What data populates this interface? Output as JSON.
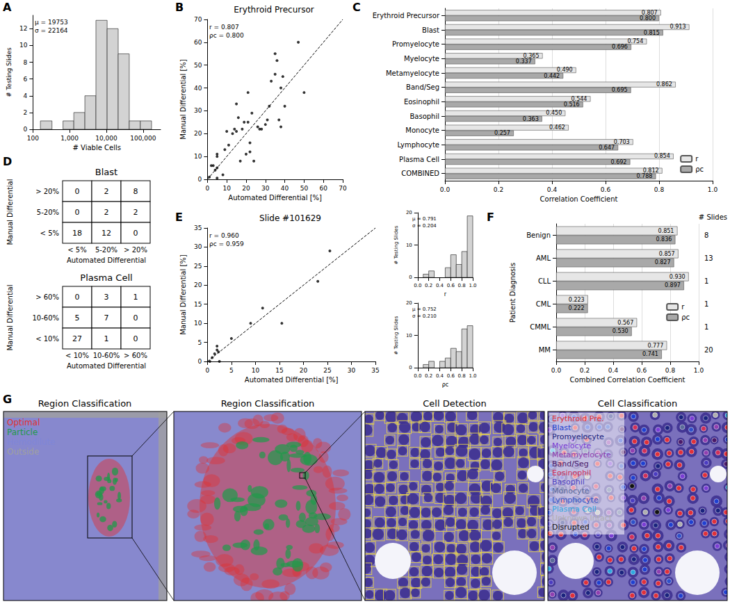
{
  "panel_labels": [
    "A",
    "B",
    "C",
    "D",
    "E",
    "F",
    "G"
  ],
  "chart_data": [
    {
      "type": "histogram",
      "xlabel": "# Viable Cells",
      "ylabel": "# Testing Slides",
      "annotations": [
        "μ = 19753",
        "σ = 22164"
      ],
      "bins": [
        160,
        330,
        660,
        1300,
        2600,
        5200,
        10500,
        21000,
        42000,
        84000,
        170000
      ],
      "counts": [
        1,
        0,
        1,
        2,
        4,
        13,
        12,
        9,
        1,
        1
      ],
      "color": "#d3d3d3",
      "log": "x",
      "xlim": [
        100,
        300000
      ],
      "xticks": [
        100,
        {
          "value": 1000,
          "label": "1,000"
        },
        {
          "value": 10000,
          "label": "10,000"
        },
        {
          "value": 100000,
          "label": "100,000"
        }
      ],
      "ylim": [
        0,
        13.6
      ],
      "yticks": [
        0,
        2,
        4,
        6,
        8,
        10,
        12
      ]
    },
    {
      "type": "scatter",
      "title": "Erythroid Precursor",
      "xlabel": "Automated Differential [%]",
      "ylabel": "Manual Differential [%]",
      "annotations": [
        "r = 0.807",
        "ρc = 0.800"
      ],
      "x": [
        1,
        2,
        3,
        4,
        5,
        5,
        5,
        5,
        8,
        9,
        10,
        11,
        13,
        14,
        15,
        15,
        16,
        17,
        18,
        19,
        20,
        21,
        21,
        22,
        22,
        23,
        24,
        26,
        27,
        28,
        30,
        31,
        32,
        33,
        35,
        35,
        36,
        37,
        38,
        38,
        39,
        40,
        47,
        50
      ],
      "y": [
        1,
        6,
        6,
        4,
        0.5,
        5,
        10,
        11,
        2,
        13,
        21,
        15,
        20,
        22,
        21,
        33,
        27,
        8,
        22,
        25,
        11,
        25,
        38,
        16,
        12,
        29,
        8,
        23,
        22,
        22,
        24,
        26,
        32,
        43,
        55,
        46,
        52,
        26,
        23,
        40,
        45,
        32,
        60,
        38
      ],
      "color": "#000000",
      "line_style": "dashed",
      "xlim": [
        0,
        70
      ],
      "ylim": [
        0,
        70
      ],
      "xticks": [
        0,
        10,
        20,
        30,
        40,
        50,
        60,
        70
      ],
      "yticks": [
        0,
        10,
        20,
        30,
        40,
        50,
        60,
        70
      ]
    },
    {
      "type": "bar",
      "orientation": "horizontal",
      "xlabel": "Correlation Coefficient",
      "categories": [
        "Erythroid Precursor",
        "Blast",
        "Promyelocyte",
        "Myelocyte",
        "Metamyelocyte",
        "Band/Seg",
        "Eosinophil",
        "Basophil",
        "Monocyte",
        "Lymphocyte",
        "Plasma Cell",
        "COMBINED"
      ],
      "series": [
        {
          "name": "r",
          "color": "#e6e6e6",
          "values": [
            0.807,
            0.913,
            0.754,
            0.365,
            0.49,
            0.862,
            0.544,
            0.45,
            0.462,
            0.703,
            0.854,
            0.812
          ],
          "value_labels": [
            "0.807",
            "0.913",
            "0.754",
            "0.365",
            "0.490",
            "0.862",
            "0.544",
            "0.450",
            "0.462",
            "0.703",
            "0.854",
            "0.812"
          ]
        },
        {
          "name": "ρc",
          "color": "#a9a9a9",
          "values": [
            0.8,
            0.815,
            0.696,
            0.337,
            0.442,
            0.695,
            0.516,
            0.363,
            0.257,
            0.647,
            0.692,
            0.788
          ],
          "value_labels": [
            "0.800",
            "0.815",
            "0.696",
            "0.337",
            "0.442",
            "0.695",
            "0.516",
            "0.363",
            "0.257",
            "0.647",
            "0.692",
            "0.788"
          ]
        }
      ],
      "xlim": [
        0,
        1
      ],
      "xticks": [
        {
          "value": 0,
          "label": "0.0"
        },
        0.2,
        0.4,
        0.6,
        0.8,
        {
          "value": 1,
          "label": "1.0"
        }
      ],
      "data_labels": true,
      "legend": "lower right",
      "grid": true
    },
    {
      "type": "scatter",
      "title": "Slide #101629",
      "xlabel": "Automated Differential [%]",
      "ylabel": "Manual Differential [%]",
      "annotations": [
        "r = 0.960",
        "ρc = 0.959"
      ],
      "x": [
        0.5,
        1,
        1.5,
        2,
        2,
        2.3,
        2.5,
        5,
        9,
        11.5,
        15.5,
        23,
        25.5
      ],
      "y": [
        0,
        1,
        2,
        4,
        3,
        2.5,
        0,
        6,
        10,
        14,
        10,
        21,
        29
      ],
      "color": "#000000",
      "line_style": "dashed",
      "xlim": [
        0,
        35
      ],
      "ylim": [
        0,
        35
      ],
      "xticks": [
        0,
        5,
        10,
        15,
        20,
        25,
        30,
        35
      ],
      "yticks": [
        0,
        5,
        10,
        15,
        20,
        25,
        30,
        35
      ]
    },
    {
      "type": "histogram",
      "xlabel": "r",
      "ylabel": "# Testing Slides",
      "annotations": [
        "μ = 0.791",
        "σ = 0.204"
      ],
      "bins": [
        0,
        0.1,
        0.2,
        0.3,
        0.4,
        0.5,
        0.6,
        0.7,
        0.8,
        0.9,
        1.0
      ],
      "counts": [
        0,
        1,
        2,
        0,
        0,
        3,
        7,
        4,
        8,
        19
      ],
      "color": "#d3d3d3",
      "xlim": [
        0,
        1
      ],
      "xticks": [
        {
          "value": 0,
          "label": "0.0"
        },
        0.2,
        0.4,
        0.6,
        0.8,
        {
          "value": 1,
          "label": "1.0"
        }
      ],
      "ylim": [
        0,
        20
      ],
      "yticks": [
        0,
        10,
        20
      ]
    },
    {
      "type": "histogram",
      "xlabel": "ρc",
      "ylabel": "# Testing Slides",
      "annotations": [
        "μ = 0.752",
        "σ = 0.210"
      ],
      "bins": [
        0,
        0.1,
        0.2,
        0.3,
        0.4,
        0.5,
        0.6,
        0.7,
        0.8,
        0.9,
        1.0
      ],
      "counts": [
        0,
        1,
        2,
        0,
        2,
        3,
        6,
        5,
        12,
        13
      ],
      "color": "#d3d3d3",
      "xlim": [
        0,
        1
      ],
      "xticks": [
        {
          "value": 0,
          "label": "0.0"
        },
        0.2,
        0.4,
        0.6,
        0.8,
        {
          "value": 1,
          "label": "1.0"
        }
      ],
      "ylim": [
        0,
        20
      ],
      "yticks": [
        0,
        10,
        20
      ]
    },
    {
      "type": "bar",
      "orientation": "horizontal",
      "xlabel": "Combined Correlation Coefficient",
      "ylabel": "Patient Diagnosis",
      "categories": [
        "Benign",
        "AML",
        "CLL",
        "CML",
        "CMML",
        "MM"
      ],
      "series": [
        {
          "name": "r",
          "color": "#e6e6e6",
          "values": [
            0.851,
            0.857,
            0.93,
            0.223,
            0.567,
            0.777
          ],
          "value_labels": [
            "0.851",
            "0.857",
            "0.930",
            "0.223",
            "0.567",
            "0.777"
          ]
        },
        {
          "name": "ρc",
          "color": "#a9a9a9",
          "values": [
            0.836,
            0.827,
            0.897,
            0.222,
            0.53,
            0.741
          ],
          "value_labels": [
            "0.836",
            "0.827",
            "0.897",
            "0.222",
            "0.530",
            "0.741"
          ]
        }
      ],
      "slides_title": "# Slides",
      "slides": [
        8,
        13,
        1,
        1,
        1,
        20
      ],
      "xlim": [
        0,
        1
      ],
      "xticks": [
        {
          "value": 0,
          "label": "0.0"
        },
        0.2,
        0.4,
        0.6,
        0.8,
        {
          "value": 1,
          "label": "1.0"
        }
      ],
      "data_labels": true,
      "legend": "center right",
      "grid": true
    }
  ],
  "confusion_tables": [
    {
      "title": "Blast",
      "row_title": "Manual Differential",
      "col_title": "Automated Differential",
      "rows": [
        "> 20%",
        "5-20%",
        "< 5%"
      ],
      "cols": [
        "< 5%",
        "5-20%",
        "> 20%"
      ],
      "cells": [
        [
          0,
          2,
          8
        ],
        [
          0,
          2,
          2
        ],
        [
          18,
          12,
          0
        ]
      ]
    },
    {
      "title": "Plasma Cell",
      "row_title": "Manual Differential",
      "col_title": "Automated Differential",
      "rows": [
        "> 60%",
        "10-60%",
        "< 10%"
      ],
      "cols": [
        "< 10%",
        "10-60%",
        "> 60%"
      ],
      "cells": [
        [
          0,
          3,
          1
        ],
        [
          5,
          7,
          0
        ],
        [
          27,
          1,
          0
        ]
      ]
    }
  ],
  "image_panels": {
    "titles": [
      "Region Classification",
      "Region Classification",
      "Cell Detection",
      "Cell Classification"
    ],
    "region_legend": [
      {
        "label": "Optimal",
        "color": "#e03030"
      },
      {
        "label": "Particle",
        "color": "#1f9a4a"
      },
      {
        "label": "Hemodilute",
        "color": "#7f86d8"
      },
      {
        "label": "Outside",
        "color": "#a0a0a0"
      }
    ],
    "cell_legend": [
      {
        "label": "Erythroid Pre.",
        "color": "#e0303a"
      },
      {
        "label": "Blast",
        "color": "#2040d0"
      },
      {
        "label": "Promyelocyte",
        "color": "#1a237e"
      },
      {
        "label": "Myelocyte",
        "color": "#7b3fd4"
      },
      {
        "label": "Metamyelocyte",
        "color": "#9040b0"
      },
      {
        "label": "Band/Seg",
        "color": "#4a1a6a"
      },
      {
        "label": "Eosinophil",
        "color": "#d0305a"
      },
      {
        "label": "Basophil",
        "color": "#4b3cc0"
      },
      {
        "label": "Monocyte",
        "color": "#5a6a9a"
      },
      {
        "label": "Lymphocyte",
        "color": "#3050c8"
      },
      {
        "label": "Plasma Cell",
        "color": "#30a8e0"
      },
      {
        "label": "Unknown Intact",
        "color": "#b0b0b0"
      },
      {
        "label": "Disrupted",
        "color": "#111111"
      }
    ]
  }
}
